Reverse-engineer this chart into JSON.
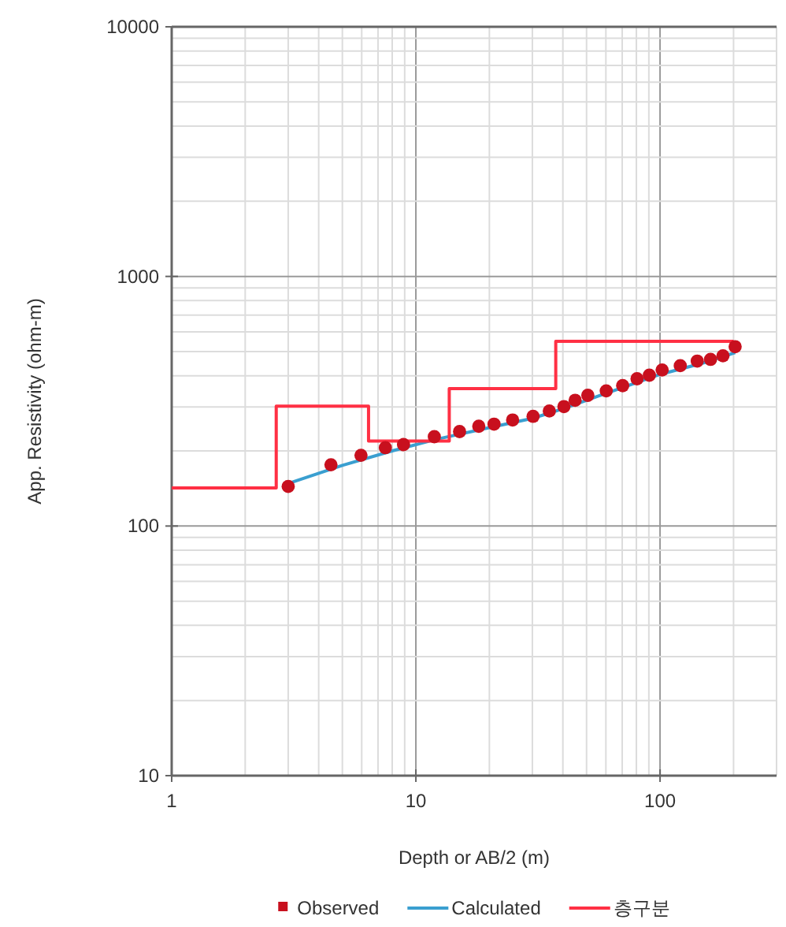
{
  "chart_data": {
    "type": "scatter",
    "xlabel": "Depth or AB/2 (m)",
    "ylabel": "App. Resistivity (ohm-m)",
    "log": "xy",
    "grid": true,
    "legend": "bottom",
    "xlim": [
      1,
      300
    ],
    "ylim": [
      10,
      10000
    ],
    "xticks": [
      1,
      10,
      100
    ],
    "yticks": [
      10,
      100,
      1000,
      10000
    ],
    "series": [
      {
        "name": "Observed",
        "marker": "circle",
        "color": "#c8101e",
        "x": [
          3.0,
          4.49,
          5.96,
          7.5,
          8.9,
          11.9,
          15.1,
          18.1,
          20.9,
          24.9,
          30.2,
          35.2,
          40.4,
          44.9,
          50.6,
          60.2,
          70.3,
          80.5,
          90.4,
          102,
          121,
          142,
          161,
          181,
          203
        ],
        "values": [
          144,
          176,
          192,
          206,
          212,
          228,
          239,
          251,
          256,
          266,
          275,
          289,
          301,
          319,
          334,
          348,
          365,
          389,
          402,
          422,
          439,
          458,
          465,
          481,
          523
        ]
      },
      {
        "name": "Calculated",
        "type": "line",
        "color": "#3a9fd0",
        "x": [
          3,
          5,
          8,
          12,
          20,
          30,
          40,
          60,
          100,
          150,
          203
        ],
        "values": [
          148,
          175,
          200,
          222,
          248,
          270,
          295,
          340,
          405,
          450,
          495
        ]
      },
      {
        "name": "층구분",
        "type": "step",
        "color": "#ff3044",
        "x": [
          1,
          2.68,
          6.4,
          13.7,
          37.4,
          200
        ],
        "values": [
          142,
          302,
          219,
          355,
          550,
          550
        ]
      }
    ]
  }
}
